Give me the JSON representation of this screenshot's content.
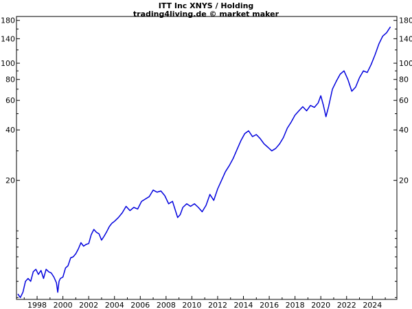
{
  "chart_data": {
    "type": "line",
    "title": "ITT Inc XNYS / Holding",
    "subtitle": "trading4living.de © market maker",
    "xlabel": "",
    "ylabel": "",
    "y_scale": "log",
    "ylim": [
      3.9,
      190
    ],
    "xlim": [
      1996.4,
      2025.9
    ],
    "grid": false,
    "y_ticks": [
      20,
      40,
      60,
      80,
      100,
      140,
      180
    ],
    "x_ticks": [
      1998,
      2000,
      2002,
      2004,
      2006,
      2008,
      2010,
      2012,
      2014,
      2016,
      2018,
      2020,
      2022,
      2024
    ],
    "line_color": "#0000dd",
    "series": [
      {
        "x": [
          1996.5,
          1996.7,
          1996.9,
          1997.1,
          1997.3,
          1997.5,
          1997.7,
          1997.9,
          1998.1,
          1998.3,
          1998.5,
          1998.7,
          1998.9,
          1999.1,
          1999.3,
          1999.5,
          1999.6,
          1999.7,
          1999.8,
          2000.0,
          2000.2,
          2000.4,
          2000.6,
          2000.8,
          2001.0,
          2001.2,
          2001.4,
          2001.6,
          2001.8,
          2002.0,
          2002.2,
          2002.4,
          2002.6,
          2002.8,
          2003.0,
          2003.2,
          2003.4,
          2003.6,
          2003.8,
          2004.0,
          2004.3,
          2004.6,
          2004.9,
          2005.2,
          2005.5,
          2005.8,
          2006.1,
          2006.4,
          2006.7,
          2007.0,
          2007.3,
          2007.6,
          2007.9,
          2008.2,
          2008.5,
          2008.7,
          2008.9,
          2009.1,
          2009.3,
          2009.6,
          2009.9,
          2010.2,
          2010.5,
          2010.8,
          2011.1,
          2011.4,
          2011.7,
          2012.0,
          2012.3,
          2012.6,
          2012.9,
          2013.2,
          2013.5,
          2013.8,
          2014.1,
          2014.4,
          2014.7,
          2015.0,
          2015.3,
          2015.6,
          2015.9,
          2016.2,
          2016.5,
          2016.8,
          2017.1,
          2017.4,
          2017.7,
          2018.0,
          2018.3,
          2018.6,
          2018.9,
          2019.2,
          2019.5,
          2019.8,
          2020.0,
          2020.2,
          2020.4,
          2020.6,
          2020.9,
          2021.2,
          2021.5,
          2021.8,
          2022.1,
          2022.4,
          2022.7,
          2023.0,
          2023.3,
          2023.6,
          2023.9,
          2024.2,
          2024.5,
          2024.8,
          2025.1,
          2025.4
        ],
        "y": [
          4.2,
          4.0,
          4.3,
          5.0,
          5.2,
          5.0,
          5.7,
          5.9,
          5.5,
          5.8,
          5.2,
          5.9,
          5.7,
          5.6,
          5.3,
          4.9,
          4.3,
          5.0,
          5.2,
          5.3,
          6.0,
          6.2,
          6.9,
          7.0,
          7.3,
          7.8,
          8.5,
          8.1,
          8.3,
          8.4,
          9.5,
          10.2,
          9.8,
          9.6,
          8.8,
          9.3,
          9.9,
          10.6,
          11.1,
          11.4,
          12.0,
          12.8,
          14.0,
          13.2,
          13.8,
          13.5,
          15.0,
          15.5,
          16.0,
          17.5,
          17.0,
          17.3,
          16.2,
          14.5,
          15.0,
          13.4,
          12.0,
          12.5,
          13.8,
          14.5,
          14.0,
          14.5,
          13.8,
          13.0,
          14.2,
          16.5,
          15.2,
          17.8,
          20.0,
          22.5,
          24.5,
          27.0,
          30.5,
          34.5,
          38.0,
          39.5,
          36.5,
          37.5,
          35.5,
          33.0,
          31.5,
          30.0,
          31.0,
          33.0,
          36.0,
          41.0,
          44.5,
          49.0,
          52.0,
          55.0,
          52.0,
          56.0,
          54.5,
          58.0,
          64.0,
          56.0,
          48.0,
          55.0,
          70.0,
          78.0,
          86.0,
          90.0,
          80.0,
          68.0,
          72.0,
          82.0,
          90.0,
          88.0,
          98.0,
          112.0,
          130.0,
          145.0,
          152.0,
          165.0
        ]
      }
    ]
  }
}
